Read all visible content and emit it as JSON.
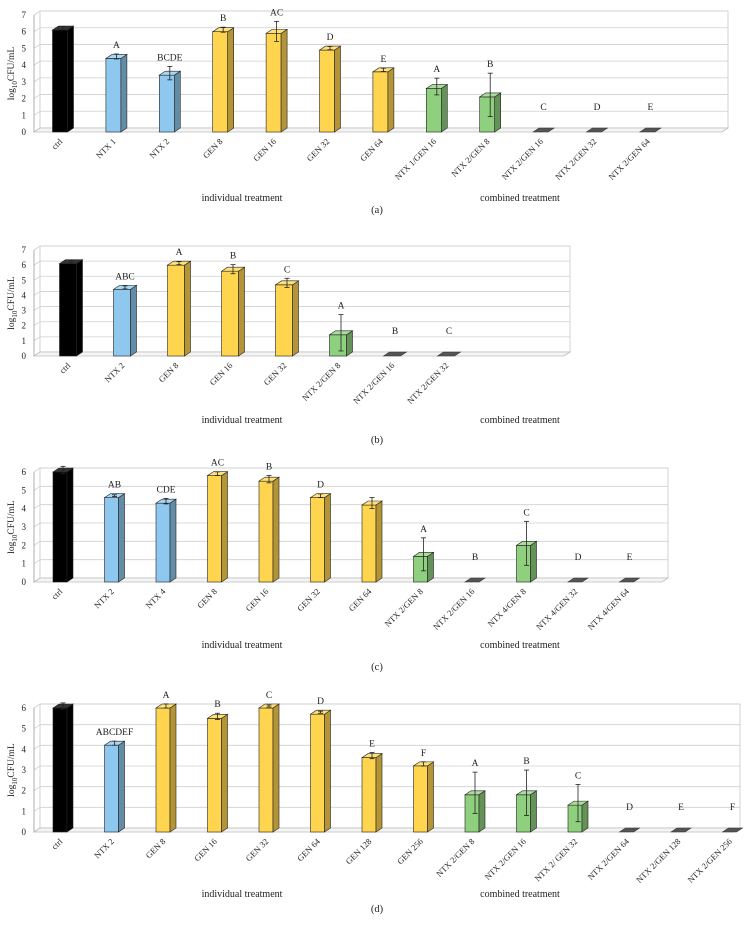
{
  "chart_data": [
    {
      "panel_label": "(a)",
      "type": "bar",
      "ylabel": "log10CFU/mL",
      "ylim": [
        0,
        7
      ],
      "yticks": [
        "0",
        "1",
        "2",
        "3",
        "4",
        "5",
        "6",
        "7"
      ],
      "grid": true,
      "group_labels": [
        "individual treatment",
        "combined treatment"
      ],
      "categories": [
        "ctrl",
        "NTX 1",
        "NTX 2",
        "GEN 8",
        "GEN 16",
        "GEN 32",
        "GEN 64",
        "NTX 1/GEN 16",
        "NTX 2/GEN 8",
        "NTX 2/GEN 16",
        "NTX 2/GEN 32",
        "NTX 2/GEN 64"
      ],
      "values": [
        6.1,
        4.4,
        3.4,
        6.0,
        5.9,
        4.9,
        3.6,
        2.6,
        2.1,
        0,
        0,
        0
      ],
      "errors": [
        0.1,
        0.15,
        0.4,
        0.15,
        0.6,
        0.1,
        0.1,
        0.5,
        1.3,
        0,
        0,
        0
      ],
      "letters": [
        "",
        "A",
        "BCDE",
        "B",
        "AC",
        "D",
        "E",
        "A",
        "B",
        "C",
        "D",
        "E"
      ],
      "colors": [
        "#000000",
        "#8ec8ee",
        "#8ec8ee",
        "#ffd54f",
        "#ffd54f",
        "#ffd54f",
        "#ffd54f",
        "#8fd07e",
        "#8fd07e",
        "#555555",
        "#555555",
        "#555555"
      ]
    },
    {
      "panel_label": "(b)",
      "type": "bar",
      "ylabel": "log10CFU/mL",
      "ylim": [
        0,
        7
      ],
      "yticks": [
        "0",
        "1",
        "2",
        "3",
        "4",
        "5",
        "6",
        "7"
      ],
      "grid": true,
      "group_labels": [
        "individual treatment",
        "combined treatment"
      ],
      "categories": [
        "ctrl",
        "NTX 2",
        "GEN 8",
        "GEN 16",
        "GEN 32",
        "NTX 2/GEN 8",
        "NTX 2/GEN 16",
        "NTX 2/GEN 32"
      ],
      "values": [
        6.1,
        4.4,
        6.0,
        5.6,
        4.7,
        1.4,
        0,
        0
      ],
      "errors": [
        0.1,
        0.1,
        0.1,
        0.3,
        0.3,
        1.2,
        0,
        0
      ],
      "letters": [
        "",
        "ABC",
        "A",
        "B",
        "C",
        "A",
        "B",
        "C"
      ],
      "colors": [
        "#000000",
        "#8ec8ee",
        "#ffd54f",
        "#ffd54f",
        "#ffd54f",
        "#8fd07e",
        "#555555",
        "#555555"
      ]
    },
    {
      "panel_label": "(c)",
      "type": "bar",
      "ylabel": "log10CFU/mL",
      "ylim": [
        0,
        6
      ],
      "yticks": [
        "0",
        "1",
        "2",
        "3",
        "4",
        "5",
        "6"
      ],
      "grid": true,
      "group_labels": [
        "individual treatment",
        "combined treatment"
      ],
      "categories": [
        "ctrl",
        "NTX 2",
        "NTX 4",
        "GEN 8",
        "GEN 16",
        "GEN 32",
        "GEN 64",
        "NTX 2/GEN 8",
        "NTX 2/GEN 16",
        "NTX 4/GEN 8",
        "NTX 4/GEN 32",
        "NTX 4/GEN 64"
      ],
      "values": [
        6.0,
        4.6,
        4.3,
        5.8,
        5.5,
        4.6,
        4.2,
        1.4,
        0,
        2.0,
        0,
        0
      ],
      "errors": [
        0.2,
        0.05,
        0.15,
        0.1,
        0.2,
        0.1,
        0.3,
        0.9,
        0,
        1.2,
        0,
        0
      ],
      "letters": [
        "",
        "AB",
        "CDE",
        "AC",
        "B",
        "D",
        "",
        "A",
        "B",
        "C",
        "D",
        "E"
      ],
      "colors": [
        "#000000",
        "#8ec8ee",
        "#8ec8ee",
        "#ffd54f",
        "#ffd54f",
        "#ffd54f",
        "#ffd54f",
        "#8fd07e",
        "#555555",
        "#8fd07e",
        "#555555",
        "#555555"
      ]
    },
    {
      "panel_label": "(d)",
      "type": "bar",
      "ylabel": "log10CFU/mL",
      "ylim": [
        0,
        6
      ],
      "yticks": [
        "0",
        "1",
        "2",
        "3",
        "4",
        "5",
        "6"
      ],
      "grid": true,
      "group_labels": [
        "individual treatment",
        "combined treatment"
      ],
      "categories": [
        "ctrl",
        "NTX 2",
        "GEN 8",
        "GEN 16",
        "GEN 32",
        "GEN 64",
        "GEN 128",
        "GEN 256",
        "NTX 2/GEN 8",
        "NTX 2/GEN 16",
        "NTX 2/ GEN 32",
        "NTX 2/GEN 64",
        "NTX 2/GEN 128",
        "NTX 2/GEN 256"
      ],
      "values": [
        6.0,
        4.2,
        6.0,
        5.5,
        6.0,
        5.7,
        3.6,
        3.2,
        1.8,
        1.8,
        1.3,
        0,
        0,
        0
      ],
      "errors": [
        0.15,
        0.1,
        0.1,
        0.15,
        0.05,
        0.05,
        0.15,
        0.1,
        1.0,
        1.1,
        0.9,
        0,
        0,
        0
      ],
      "letters": [
        "",
        "ABCDEF",
        "A",
        "B",
        "C",
        "D",
        "E",
        "F",
        "A",
        "B",
        "C",
        "D",
        "E",
        "F"
      ],
      "colors": [
        "#000000",
        "#8ec8ee",
        "#ffd54f",
        "#ffd54f",
        "#ffd54f",
        "#ffd54f",
        "#ffd54f",
        "#ffd54f",
        "#8fd07e",
        "#8fd07e",
        "#8fd07e",
        "#555555",
        "#555555",
        "#555555"
      ]
    }
  ]
}
